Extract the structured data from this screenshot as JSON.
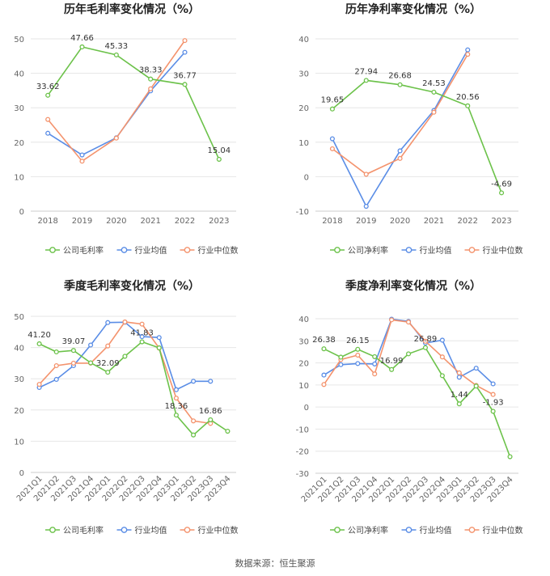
{
  "colors": {
    "company": "#6cc24a",
    "industry_avg": "#5a8de6",
    "industry_median": "#f4936d",
    "grid": "#e6e6e6",
    "axis_text": "#666666",
    "title": "#222222"
  },
  "source_label": "数据来源：恒生聚源",
  "chart_data": [
    {
      "type": "line",
      "title": "历年毛利率变化情况（%）",
      "categories": [
        "2018",
        "2019",
        "2020",
        "2021",
        "2022",
        "2023"
      ],
      "ylim": [
        0,
        50
      ],
      "yticks": [
        0,
        10,
        20,
        30,
        40,
        50
      ],
      "grid": true,
      "legend_position": "bottom",
      "series": [
        {
          "name": "公司毛利率",
          "color_key": "company",
          "values": [
            33.62,
            47.66,
            45.33,
            38.33,
            36.77,
            15.04
          ],
          "labels": [
            "33.62",
            "47.66",
            "45.33",
            "38.33",
            "36.77",
            "15.04"
          ]
        },
        {
          "name": "行业均值",
          "color_key": "industry_avg",
          "values": [
            22.6,
            16.3,
            21.3,
            34.9,
            46.1,
            null
          ]
        },
        {
          "name": "行业中位数",
          "color_key": "industry_median",
          "values": [
            26.6,
            14.5,
            21.2,
            35.5,
            49.5,
            null
          ]
        }
      ]
    },
    {
      "type": "line",
      "title": "历年净利率变化情况（%）",
      "categories": [
        "2018",
        "2019",
        "2020",
        "2021",
        "2022",
        "2023"
      ],
      "ylim": [
        -10,
        40
      ],
      "yticks": [
        -10,
        0,
        10,
        20,
        30,
        40
      ],
      "grid": true,
      "legend_position": "bottom",
      "series": [
        {
          "name": "公司净利率",
          "color_key": "company",
          "values": [
            19.65,
            27.94,
            26.68,
            24.53,
            20.56,
            -4.69
          ],
          "labels": [
            "19.65",
            "27.94",
            "26.68",
            "24.53",
            "20.56",
            "-4.69"
          ]
        },
        {
          "name": "行业均值",
          "color_key": "industry_avg",
          "values": [
            11.0,
            -8.6,
            7.5,
            19.2,
            36.8,
            null
          ]
        },
        {
          "name": "行业中位数",
          "color_key": "industry_median",
          "values": [
            8.1,
            0.7,
            5.3,
            18.7,
            35.5,
            null
          ]
        }
      ]
    },
    {
      "type": "line",
      "title": "季度毛利率变化情况（%）",
      "categories": [
        "2021Q1",
        "2021Q2",
        "2021Q3",
        "2021Q4",
        "2022Q1",
        "2022Q2",
        "2022Q3",
        "2022Q4",
        "2023Q1",
        "2023Q2",
        "2023Q3",
        "2023Q4"
      ],
      "ylim": [
        0,
        50
      ],
      "yticks": [
        0,
        10,
        20,
        30,
        40,
        50
      ],
      "grid": true,
      "legend_position": "bottom",
      "series": [
        {
          "name": "公司毛利率",
          "color_key": "company",
          "values": [
            41.2,
            38.6,
            39.07,
            35.1,
            32.09,
            37.2,
            41.83,
            39.9,
            18.36,
            12.0,
            16.86,
            13.2
          ],
          "labels": [
            "41.20",
            "",
            "39.07",
            "",
            "32.09",
            "",
            "41.83",
            "",
            "18.36",
            "",
            "16.86",
            ""
          ]
        },
        {
          "name": "行业均值",
          "color_key": "industry_avg",
          "values": [
            27.2,
            29.8,
            34.2,
            40.8,
            48.0,
            48.1,
            43.5,
            43.2,
            26.5,
            29.2,
            29.2,
            null
          ]
        },
        {
          "name": "行业中位数",
          "color_key": "industry_median",
          "values": [
            28.2,
            34.2,
            35.0,
            35.0,
            40.5,
            48.2,
            47.5,
            39.8,
            23.8,
            16.5,
            15.7,
            null
          ]
        }
      ]
    },
    {
      "type": "line",
      "title": "季度净利率变化情况（%）",
      "categories": [
        "2021Q1",
        "2021Q2",
        "2021Q3",
        "2021Q4",
        "2022Q1",
        "2022Q2",
        "2022Q3",
        "2022Q4",
        "2023Q1",
        "2023Q2",
        "2023Q3",
        "2023Q4"
      ],
      "ylim": [
        -30,
        40
      ],
      "yticks": [
        -30,
        -20,
        -10,
        0,
        10,
        20,
        30,
        40
      ],
      "grid": true,
      "legend_position": "bottom",
      "series": [
        {
          "name": "公司净利率",
          "color_key": "company",
          "values": [
            26.38,
            22.6,
            26.15,
            22.8,
            16.99,
            24.1,
            26.89,
            14.2,
            1.44,
            9.5,
            -1.93,
            -22.5
          ],
          "labels": [
            "26.38",
            "",
            "26.15",
            "",
            "16.99",
            "",
            "26.89",
            "",
            "1.44",
            "",
            "-1.93",
            ""
          ]
        },
        {
          "name": "行业均值",
          "color_key": "industry_avg",
          "values": [
            14.5,
            19.2,
            19.7,
            19.5,
            39.8,
            38.8,
            29.0,
            30.3,
            13.5,
            17.6,
            10.5,
            null
          ]
        },
        {
          "name": "行业中位数",
          "color_key": "industry_median",
          "values": [
            10.2,
            21.5,
            23.5,
            15.0,
            39.5,
            38.5,
            29.8,
            22.7,
            15.5,
            9.8,
            5.7,
            null
          ]
        }
      ]
    }
  ]
}
